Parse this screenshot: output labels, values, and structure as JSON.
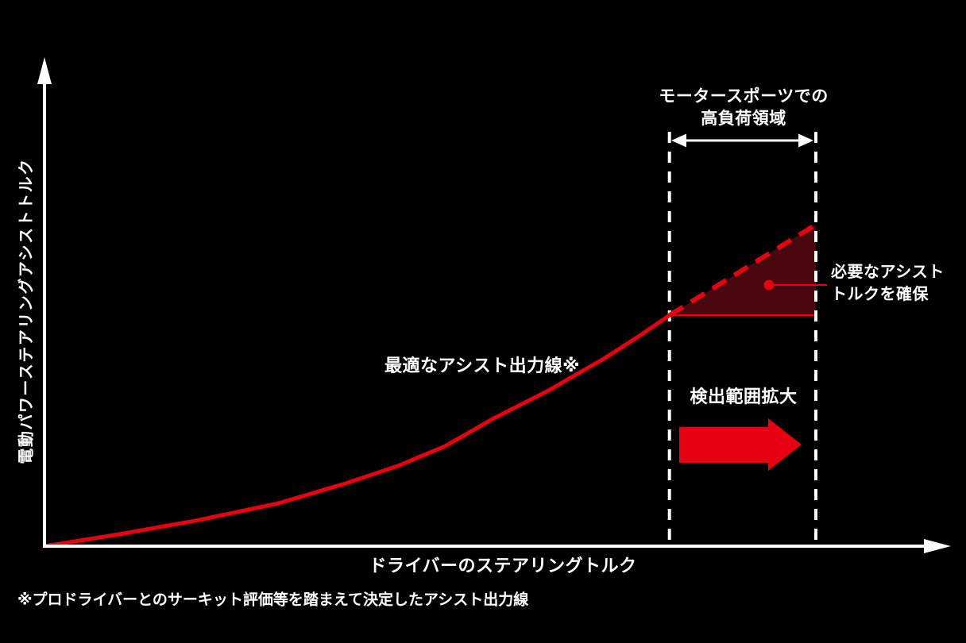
{
  "colors": {
    "background": "#000000",
    "axis": "#ffffff",
    "text": "#ffffff",
    "accent_red": "#e60012",
    "expansion_fill": "#470810"
  },
  "labels": {
    "y_axis": "電動パワーステアリングアシストトルク",
    "x_axis": "ドライバーのステアリングトルク",
    "high_load_region": "モータースポーツでの\n高負荷領域",
    "optimal_line": "最適なアシスト出力線※",
    "detection_expand": "検出範囲拡大",
    "assist_callout": "必要なアシスト\nトルクを確保",
    "footnote": "※プロドライバーとのサーキット評価等を踏まえて決定したアシスト出力線"
  },
  "chart_data": {
    "type": "line",
    "title": "",
    "xlabel": "ドライバーのステアリングトルク",
    "ylabel": "電動パワーステアリングアシストトルク",
    "xlim": [
      0,
      1
    ],
    "ylim": [
      0,
      1
    ],
    "axes_have_numeric_ticks": false,
    "grid": false,
    "series": [
      {
        "name": "最適なアシスト出力線※",
        "style": "solid",
        "color": "#e60012",
        "points": [
          [
            0.0,
            0.0
          ],
          [
            0.096,
            0.037
          ],
          [
            0.199,
            0.081
          ],
          [
            0.302,
            0.133
          ],
          [
            0.387,
            0.193
          ],
          [
            0.457,
            0.249
          ],
          [
            0.519,
            0.311
          ],
          [
            0.58,
            0.395
          ],
          [
            0.653,
            0.484
          ],
          [
            0.725,
            0.583
          ],
          [
            0.771,
            0.654
          ],
          [
            0.81,
            0.718
          ]
        ]
      },
      {
        "name": "",
        "style": "dashed",
        "color": "#e60012",
        "points": [
          [
            0.81,
            0.718
          ],
          [
            1.0,
            1.0
          ]
        ]
      }
    ],
    "region": {
      "label": "モータースポーツでの高負荷領域",
      "marker": "vertical-dashed-lines",
      "x_start": 0.81,
      "x_end": 1.0
    },
    "shaded_triangle": {
      "label": "必要なアシストトルクを確保",
      "fill": "#470810",
      "vertices": [
        [
          0.81,
          0.718
        ],
        [
          1.0,
          1.0
        ],
        [
          1.0,
          0.718
        ]
      ]
    },
    "annotations": [
      {
        "text": "最適なアシスト出力線※",
        "target": "solid-curve"
      },
      {
        "text": "検出範囲拡大",
        "target": "high-load-region",
        "symbol": "big-red-right-arrow"
      },
      {
        "text": "必要なアシスト\nトルクを確保",
        "target": "shaded-triangle",
        "symbol": "red-dot-leader"
      },
      {
        "text": "モータースポーツでの\n高負荷領域",
        "target": "region-extent",
        "symbol": "double-headed-arrow"
      }
    ]
  }
}
